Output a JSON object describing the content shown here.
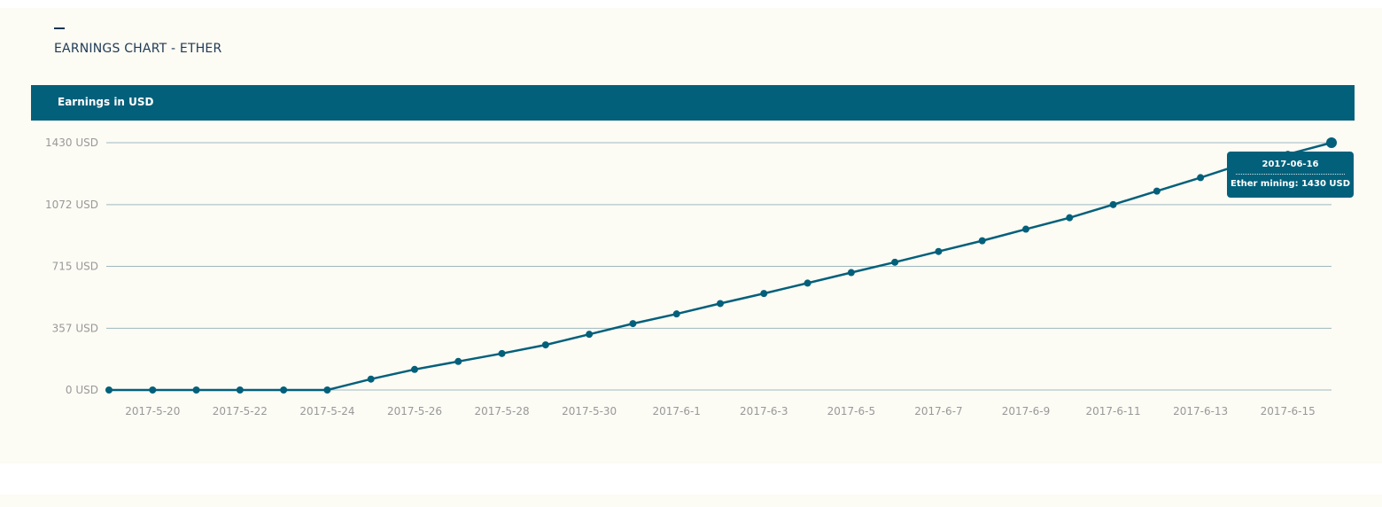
{
  "section": {
    "title": "EARNINGS CHART - ETHER"
  },
  "chart_header": {
    "label": "Earnings in USD"
  },
  "tooltip": {
    "date": "2017-06-16",
    "series_label": "Ether mining:",
    "value_text": "1430 USD"
  },
  "colors": {
    "accent": "#03607b",
    "panel_background": "#fcfbf4",
    "gridline": "#9fb9c0",
    "tick_text": "#999999"
  },
  "chart_data": {
    "type": "line",
    "title": "",
    "xlabel": "",
    "ylabel": "",
    "ylim": [
      0,
      1430
    ],
    "yticks": [
      0,
      357,
      715,
      1072,
      1430
    ],
    "ytick_labels": [
      "0 USD",
      "357 USD",
      "715 USD",
      "1072 USD",
      "1430 USD"
    ],
    "xticks": [
      "2017-5-20",
      "2017-5-22",
      "2017-5-24",
      "2017-5-26",
      "2017-5-28",
      "2017-5-30",
      "2017-6-1",
      "2017-6-3",
      "2017-6-5",
      "2017-6-7",
      "2017-6-9",
      "2017-6-11",
      "2017-6-13",
      "2017-6-15"
    ],
    "grid": true,
    "legend": "none",
    "series": [
      {
        "name": "Ether mining",
        "x": [
          "2017-05-19",
          "2017-05-20",
          "2017-05-21",
          "2017-05-22",
          "2017-05-23",
          "2017-05-24",
          "2017-05-25",
          "2017-05-26",
          "2017-05-27",
          "2017-05-28",
          "2017-05-29",
          "2017-05-30",
          "2017-05-31",
          "2017-06-01",
          "2017-06-02",
          "2017-06-03",
          "2017-06-04",
          "2017-06-05",
          "2017-06-06",
          "2017-06-07",
          "2017-06-08",
          "2017-06-09",
          "2017-06-10",
          "2017-06-11",
          "2017-06-12",
          "2017-06-13",
          "2017-06-14",
          "2017-06-15",
          "2017-06-16"
        ],
        "values": [
          0,
          0,
          0,
          0,
          0,
          0,
          63,
          119,
          165,
          211,
          261,
          322,
          384,
          440,
          500,
          558,
          618,
          679,
          739,
          801,
          863,
          930,
          996,
          1072,
          1150,
          1228,
          1310,
          1363,
          1430
        ]
      }
    ]
  }
}
